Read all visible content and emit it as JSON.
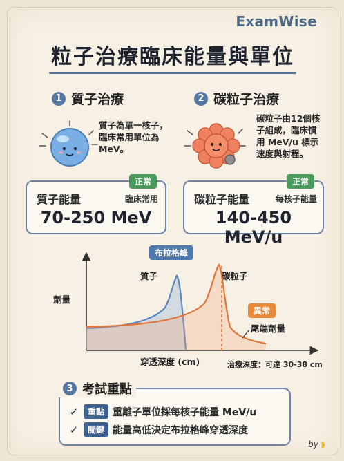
{
  "brand": "ExamWise",
  "title": "粒子治療臨床能量與單位",
  "proton": {
    "number": "1",
    "heading": "質子治療",
    "description_lines": [
      "質子為單一核子，",
      "臨床常用單位為",
      "MeV。"
    ],
    "card": {
      "badge": "正常",
      "label": "質子能量",
      "note": "臨床常用",
      "value": "70-250 MeV"
    }
  },
  "carbon": {
    "number": "2",
    "heading": "碳粒子治療",
    "description_lines": [
      "碳粒子由12個核",
      "子組成，臨床慣",
      "用 MeV/u 標示",
      "速度與射程。"
    ],
    "card": {
      "badge": "正常",
      "label": "碳粒子能量",
      "note": "每核子能量",
      "value": "140-450 MeV/u"
    }
  },
  "chart": {
    "peak_tag": "布拉格峰",
    "proton_label": "質子",
    "carbon_label": "碳粒子",
    "y_label": "劑量",
    "x_label": "穿透深度 (cm)",
    "abnormal_tag": "異常",
    "tail_label": "尾端劑量",
    "depth_note": "治療深度：可達 30-38 cm",
    "colors": {
      "proton": "#5b87bd",
      "carbon": "#e0763a",
      "axis": "#333333"
    }
  },
  "exam": {
    "number": "3",
    "heading": "考試重點",
    "points": [
      {
        "check": "✓",
        "keyword": "重點",
        "text": "重離子單位採每核子能量 MeV/u"
      },
      {
        "check": "✓",
        "keyword": "關鍵",
        "text": "能量高低決定布拉格峰穿透深度"
      }
    ]
  },
  "signature": "by"
}
